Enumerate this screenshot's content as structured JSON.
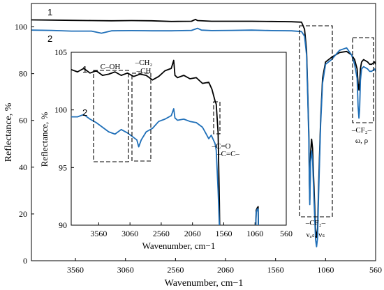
{
  "chart_data": [
    {
      "type": "line",
      "xlabel": "Wavenumber, cm−1",
      "ylabel": "Reflectance, %",
      "xlim": [
        4000,
        560
      ],
      "ylim": [
        0,
        110
      ],
      "x_ticks": [
        3560,
        3060,
        2560,
        2060,
        1560,
        1060,
        560
      ],
      "y_ticks": [
        0,
        20,
        40,
        60,
        80,
        100
      ],
      "series": [
        {
          "name": "1",
          "color": "#000000",
          "points": [
            [
              4000,
              103.0
            ],
            [
              3800,
              102.9
            ],
            [
              3600,
              102.8
            ],
            [
              3400,
              102.7
            ],
            [
              3200,
              102.6
            ],
            [
              3000,
              102.7
            ],
            [
              2800,
              102.6
            ],
            [
              2600,
              102.3
            ],
            [
              2400,
              102.4
            ],
            [
              2360,
              103.2
            ],
            [
              2340,
              102.7
            ],
            [
              2200,
              102.4
            ],
            [
              2000,
              102.4
            ],
            [
              1800,
              102.4
            ],
            [
              1600,
              102.3
            ],
            [
              1400,
              102.2
            ],
            [
              1300,
              102.0
            ],
            [
              1270,
              99
            ],
            [
              1250,
              90
            ],
            [
              1240,
              75
            ],
            [
              1228,
              55
            ],
            [
              1222,
              35
            ],
            [
              1218,
              26
            ],
            [
              1214,
              36
            ],
            [
              1210,
              46
            ],
            [
              1200,
              52
            ],
            [
              1190,
              48
            ],
            [
              1175,
              30
            ],
            [
              1160,
              13
            ],
            [
              1150,
              10
            ],
            [
              1140,
              14
            ],
            [
              1130,
              32
            ],
            [
              1110,
              60
            ],
            [
              1090,
              78
            ],
            [
              1060,
              85
            ],
            [
              1000,
              87
            ],
            [
              920,
              89
            ],
            [
              850,
              89.5
            ],
            [
              800,
              88
            ],
            [
              770,
              86
            ],
            [
              745,
              82
            ],
            [
              735,
              76
            ],
            [
              727,
              73
            ],
            [
              720,
              76
            ],
            [
              712,
              82
            ],
            [
              700,
              85
            ],
            [
              680,
              86
            ],
            [
              640,
              85
            ],
            [
              620,
              84
            ],
            [
              600,
              84
            ],
            [
              570,
              85
            ],
            [
              560,
              84
            ]
          ]
        },
        {
          "name": "2",
          "color": "#1f6fb8",
          "points": [
            [
              4000,
              98.6
            ],
            [
              3800,
              98.5
            ],
            [
              3600,
              98.2
            ],
            [
              3400,
              98.2
            ],
            [
              3300,
              97.3
            ],
            [
              3200,
              98.3
            ],
            [
              3000,
              98.4
            ],
            [
              2800,
              98.3
            ],
            [
              2600,
              98.3
            ],
            [
              2400,
              98.5
            ],
            [
              2340,
              99.4
            ],
            [
              2300,
              98.6
            ],
            [
              2200,
              98.4
            ],
            [
              2000,
              98.5
            ],
            [
              1800,
              98.6
            ],
            [
              1600,
              98.4
            ],
            [
              1400,
              98.3
            ],
            [
              1300,
              98.0
            ],
            [
              1270,
              96
            ],
            [
              1250,
              88
            ],
            [
              1240,
              73
            ],
            [
              1228,
              52
            ],
            [
              1222,
              33
            ],
            [
              1218,
              24
            ],
            [
              1214,
              33
            ],
            [
              1210,
              42
            ],
            [
              1200,
              47
            ],
            [
              1190,
              43
            ],
            [
              1175,
              25
            ],
            [
              1160,
              9
            ],
            [
              1150,
              6
            ],
            [
              1140,
              10
            ],
            [
              1130,
              28
            ],
            [
              1110,
              58
            ],
            [
              1090,
              76
            ],
            [
              1060,
              84
            ],
            [
              1000,
              86
            ],
            [
              920,
              90
            ],
            [
              850,
              91
            ],
            [
              800,
              88
            ],
            [
              770,
              84
            ],
            [
              745,
              78
            ],
            [
              735,
              66
            ],
            [
              727,
              61
            ],
            [
              720,
              65
            ],
            [
              712,
              77
            ],
            [
              700,
              82
            ],
            [
              680,
              83
            ],
            [
              640,
              82
            ],
            [
              620,
              81
            ],
            [
              600,
              81
            ],
            [
              570,
              82
            ],
            [
              560,
              81
            ]
          ]
        }
      ],
      "annotations": [
        {
          "id": "cf2-stretch",
          "lines": [
            "–CF₂–",
            "νₐₛ, νₛ"
          ]
        },
        {
          "id": "cf2-wag",
          "lines": [
            "–CF₂–",
            "ω, ρ"
          ]
        }
      ]
    },
    {
      "type": "line",
      "xlabel": "Wavenumber, cm−1",
      "ylabel": "Reflectance, %",
      "xlim": [
        4000,
        560
      ],
      "ylim": [
        90,
        105
      ],
      "x_ticks": [
        3560,
        3060,
        2560,
        2060,
        1560,
        1060,
        560
      ],
      "y_ticks": [
        90,
        95,
        100,
        105
      ],
      "series": [
        {
          "name": "1",
          "color": "#000000",
          "points": [
            [
              4000,
              103.5
            ],
            [
              3900,
              103.3
            ],
            [
              3800,
              103.6
            ],
            [
              3700,
              103.2
            ],
            [
              3600,
              103.4
            ],
            [
              3500,
              103.0
            ],
            [
              3400,
              103.1
            ],
            [
              3300,
              103.3
            ],
            [
              3200,
              103.0
            ],
            [
              3100,
              103.2
            ],
            [
              3000,
              102.9
            ],
            [
              2900,
              103.1
            ],
            [
              2800,
              103.0
            ],
            [
              2700,
              102.6
            ],
            [
              2600,
              102.9
            ],
            [
              2500,
              103.4
            ],
            [
              2400,
              103.6
            ],
            [
              2360,
              104.3
            ],
            [
              2340,
              103.0
            ],
            [
              2300,
              102.8
            ],
            [
              2200,
              103.0
            ],
            [
              2100,
              102.7
            ],
            [
              2000,
              102.8
            ],
            [
              1900,
              102.3
            ],
            [
              1800,
              102.4
            ],
            [
              1750,
              101.8
            ],
            [
              1700,
              100.8
            ],
            [
              1680,
              100.5
            ],
            [
              1650,
              98
            ],
            [
              1630,
              92
            ],
            [
              1620,
              88
            ],
            [
              1060,
              88
            ],
            [
              1040,
              91.3
            ],
            [
              1025,
              91.5
            ],
            [
              1010,
              91.6
            ],
            [
              1000,
              88
            ]
          ]
        },
        {
          "name": "2",
          "color": "#1f6fb8",
          "points": [
            [
              4000,
              99.4
            ],
            [
              3900,
              99.4
            ],
            [
              3800,
              99.6
            ],
            [
              3700,
              99.2
            ],
            [
              3600,
              98.9
            ],
            [
              3500,
              98.5
            ],
            [
              3400,
              98.1
            ],
            [
              3300,
              97.9
            ],
            [
              3200,
              98.3
            ],
            [
              3100,
              98.0
            ],
            [
              3000,
              97.6
            ],
            [
              2950,
              97.4
            ],
            [
              2920,
              96.8
            ],
            [
              2880,
              97.4
            ],
            [
              2800,
              98.1
            ],
            [
              2700,
              98.4
            ],
            [
              2600,
              99.0
            ],
            [
              2500,
              99.2
            ],
            [
              2400,
              99.5
            ],
            [
              2360,
              100.1
            ],
            [
              2340,
              99.3
            ],
            [
              2300,
              99.1
            ],
            [
              2200,
              99.2
            ],
            [
              2100,
              99.0
            ],
            [
              2000,
              98.9
            ],
            [
              1900,
              98.5
            ],
            [
              1850,
              98.0
            ],
            [
              1800,
              97.5
            ],
            [
              1760,
              97.8
            ],
            [
              1700,
              97.1
            ],
            [
              1680,
              96.5
            ],
            [
              1650,
              93
            ],
            [
              1630,
              90
            ],
            [
              1620,
              88
            ],
            [
              1060,
              88
            ],
            [
              1040,
              91.1
            ],
            [
              1025,
              91.4
            ],
            [
              1010,
              91.4
            ],
            [
              1000,
              88
            ]
          ]
        }
      ],
      "annotations": [
        {
          "id": "c-oh",
          "lines": [
            "C–OH"
          ]
        },
        {
          "id": "ch2-ch",
          "lines": [
            "–CH₂",
            "–CH"
          ]
        },
        {
          "id": "c-o",
          "lines": [
            "–C=O"
          ]
        },
        {
          "id": "c-c",
          "lines": [
            "–C=C–"
          ]
        }
      ]
    }
  ]
}
